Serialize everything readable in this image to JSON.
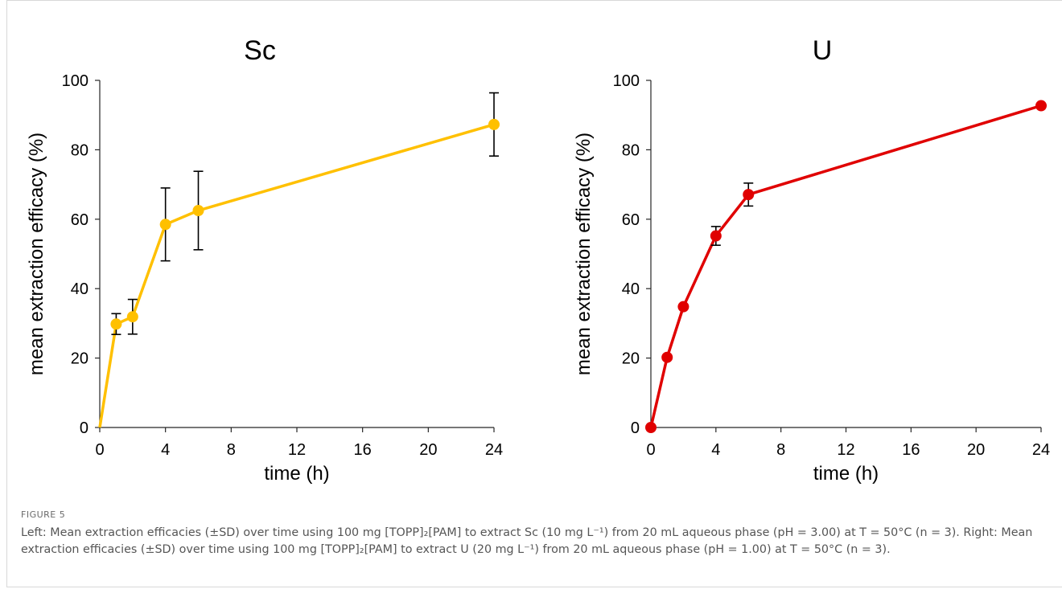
{
  "caption": {
    "label": "FIGURE 5",
    "text": "Left: Mean extraction efficacies (±SD) over time using 100 mg [TOPP]₂[PAM] to extract Sc (10 mg L⁻¹) from 20 mL aqueous phase (pH = 3.00) at T = 50°C (n = 3). Right: Mean extraction efficacies (±SD) over time using 100 mg [TOPP]₂[PAM] to extract U (20 mg L⁻¹) from 20 mL aqueous phase (pH = 1.00) at T = 50°C (n = 3)."
  },
  "chart_data": [
    {
      "type": "line",
      "title": "Sc",
      "xlabel": "time (h)",
      "ylabel": "mean extraction efficacy (%)",
      "xlim": [
        0,
        24
      ],
      "ylim": [
        0,
        100
      ],
      "xticks": [
        0,
        4,
        8,
        12,
        16,
        20,
        24
      ],
      "yticks": [
        0,
        20,
        40,
        60,
        80,
        100
      ],
      "grid": false,
      "color": "#FFC000",
      "x": [
        0,
        1,
        2,
        4,
        6,
        24
      ],
      "y": [
        0,
        29.8,
        31.9,
        58.5,
        62.5,
        87.3
      ],
      "error": [
        0,
        3,
        5,
        10.5,
        11.3,
        9.1
      ]
    },
    {
      "type": "line",
      "title": "U",
      "xlabel": "time (h)",
      "ylabel": "mean extraction efficacy (%)",
      "xlim": [
        0,
        24
      ],
      "ylim": [
        0,
        100
      ],
      "xticks": [
        0,
        4,
        8,
        12,
        16,
        20,
        24
      ],
      "yticks": [
        0,
        20,
        40,
        60,
        80,
        100
      ],
      "grid": false,
      "color": "#E00000",
      "x": [
        0,
        1,
        2,
        4,
        6,
        24
      ],
      "y": [
        0,
        20.2,
        34.8,
        55.2,
        67.1,
        92.7
      ],
      "error": [
        0,
        0,
        0,
        2.7,
        3.3,
        0
      ]
    }
  ]
}
